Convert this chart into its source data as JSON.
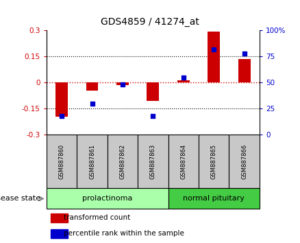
{
  "title": "GDS4859 / 41274_at",
  "samples": [
    "GSM887860",
    "GSM887861",
    "GSM887862",
    "GSM887863",
    "GSM887864",
    "GSM887865",
    "GSM887866"
  ],
  "transformed_count": [
    -0.195,
    -0.045,
    -0.015,
    -0.105,
    0.015,
    0.295,
    0.135
  ],
  "percentile_rank": [
    18,
    30,
    48,
    18,
    55,
    82,
    78
  ],
  "ylim_left": [
    -0.3,
    0.3
  ],
  "ylim_right": [
    0,
    100
  ],
  "yticks_left": [
    -0.3,
    -0.15,
    0,
    0.15,
    0.3
  ],
  "yticks_right": [
    0,
    25,
    50,
    75,
    100
  ],
  "bar_color": "#CC0000",
  "dot_color": "#0000CC",
  "zero_line_color": "#CC0000",
  "black_dotted_color": "#000000",
  "sample_box_color": "#C8C8C8",
  "prolactinoma_color": "#AAFFAA",
  "normal_pituitary_color": "#44CC44",
  "disease_state_label": "disease state",
  "legend_items": [
    {
      "label": "transformed count",
      "color": "#CC0000"
    },
    {
      "label": "percentile rank within the sample",
      "color": "#0000CC"
    }
  ],
  "group_boundaries": [
    {
      "start": 0,
      "end": 3,
      "label": "prolactinoma",
      "color": "#AAFFAA"
    },
    {
      "start": 4,
      "end": 6,
      "label": "normal pituitary",
      "color": "#44CC44"
    }
  ]
}
